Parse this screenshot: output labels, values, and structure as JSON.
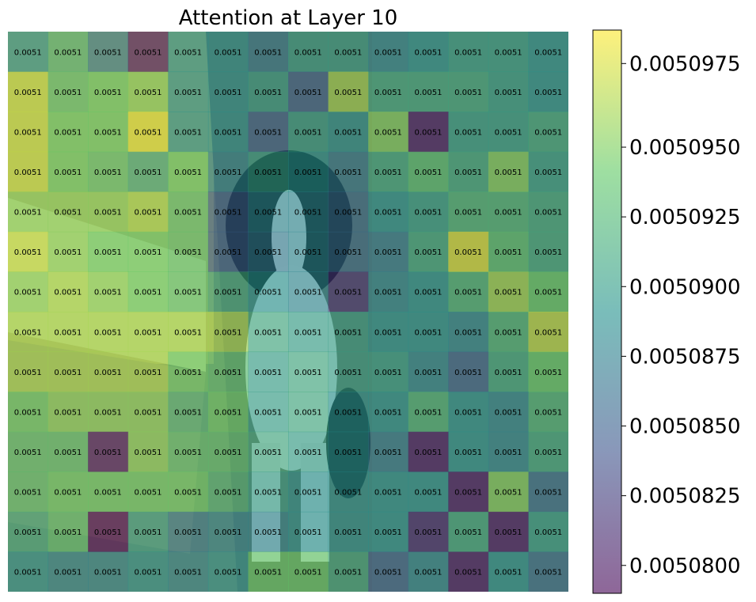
{
  "chart_data": {
    "type": "heatmap",
    "title": "Attention at Layer 10",
    "rows": 14,
    "cols": 14,
    "cell_label": "0.0051",
    "colormap": "viridis",
    "overlay_alpha": 0.6,
    "background_image": "photo of a black-and-white spaniel dog sitting on a floor next to a cushioned chair",
    "colorbar": {
      "vmin": 0.005079,
      "vmax": 0.0050992,
      "ticks": [
        0.005098,
        0.005095,
        0.0050925,
        0.00509,
        0.0050875,
        0.005085,
        0.0050825,
        0.00508
      ],
      "tick_labels": [
        "0.0050975",
        "0.0050950",
        "0.0050925",
        "0.0050900",
        "0.0050875",
        "0.0050850",
        "0.0050825",
        "0.0050800"
      ]
    },
    "values": [
      [
        0.5,
        0.65,
        0.4,
        0.05,
        0.5,
        0.5,
        0.4,
        0.55,
        0.55,
        0.45,
        0.5,
        0.55,
        0.55,
        0.5
      ],
      [
        0.9,
        0.7,
        0.75,
        0.8,
        0.5,
        0.5,
        0.55,
        0.3,
        0.85,
        0.6,
        0.6,
        0.6,
        0.55,
        0.5
      ],
      [
        0.9,
        0.75,
        0.75,
        0.95,
        0.5,
        0.5,
        0.3,
        0.55,
        0.5,
        0.8,
        0.05,
        0.55,
        0.55,
        0.6
      ],
      [
        0.9,
        0.75,
        0.7,
        0.6,
        0.75,
        0.45,
        0.55,
        0.5,
        0.4,
        0.6,
        0.7,
        0.6,
        0.8,
        0.55
      ],
      [
        0.8,
        0.8,
        0.8,
        0.85,
        0.7,
        0.3,
        0.45,
        0.45,
        0.35,
        0.5,
        0.55,
        0.65,
        0.65,
        0.6
      ],
      [
        0.9,
        0.8,
        0.75,
        0.75,
        0.7,
        0.3,
        0.4,
        0.45,
        0.35,
        0.4,
        0.6,
        0.95,
        0.7,
        0.6
      ],
      [
        0.8,
        0.85,
        0.8,
        0.75,
        0.7,
        0.6,
        0.5,
        0.45,
        0.15,
        0.45,
        0.5,
        0.65,
        0.85,
        0.75
      ],
      [
        0.85,
        0.85,
        0.85,
        0.85,
        0.85,
        0.85,
        0.6,
        0.55,
        0.55,
        0.5,
        0.5,
        0.45,
        0.65,
        0.9
      ],
      [
        0.85,
        0.85,
        0.85,
        0.85,
        0.75,
        0.7,
        0.55,
        0.6,
        0.55,
        0.55,
        0.45,
        0.3,
        0.6,
        0.75
      ],
      [
        0.75,
        0.8,
        0.8,
        0.8,
        0.65,
        0.75,
        0.55,
        0.6,
        0.5,
        0.5,
        0.65,
        0.5,
        0.45,
        0.65
      ],
      [
        0.7,
        0.7,
        0.05,
        0.8,
        0.7,
        0.7,
        0.6,
        0.55,
        0.5,
        0.4,
        0.05,
        0.5,
        0.45,
        0.6
      ],
      [
        0.7,
        0.75,
        0.75,
        0.75,
        0.75,
        0.65,
        0.55,
        0.5,
        0.5,
        0.5,
        0.5,
        0.05,
        0.8,
        0.35
      ],
      [
        0.6,
        0.7,
        0.0,
        0.55,
        0.4,
        0.45,
        0.45,
        0.5,
        0.5,
        0.5,
        0.1,
        0.6,
        0.05,
        0.55
      ],
      [
        0.5,
        0.45,
        0.45,
        0.5,
        0.45,
        0.5,
        0.75,
        0.75,
        0.6,
        0.3,
        0.45,
        0.05,
        0.5,
        0.35
      ]
    ]
  }
}
